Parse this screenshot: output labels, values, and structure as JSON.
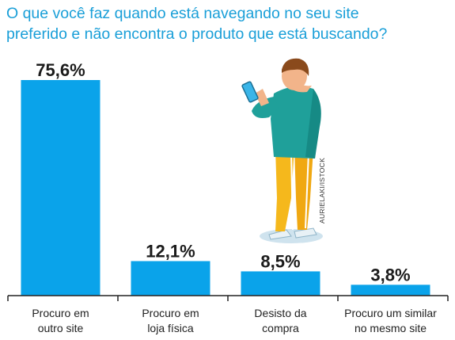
{
  "title_lines": [
    "O que você faz quando está navegando no seu site",
    "preferido e não encontra o produto que está buscando?"
  ],
  "credit": "AURIELAKI/ISTOCK",
  "colors": {
    "bar": "#0aa3ea",
    "title": "#1a9fd8",
    "axis": "#222222"
  },
  "chart_data": {
    "type": "bar",
    "title": "O que você faz quando está navegando no seu site preferido e não encontra o produto que está buscando?",
    "categories": [
      [
        "Procuro em",
        "outro site"
      ],
      [
        "Procuro em",
        "loja física"
      ],
      [
        "Desisto da",
        "compra"
      ],
      [
        "Procuro um similar",
        "no mesmo site"
      ]
    ],
    "values": [
      75.6,
      12.1,
      8.5,
      3.8
    ],
    "value_labels": [
      "75,6%",
      "12,1%",
      "8,5%",
      "3,8%"
    ],
    "xlabel": "",
    "ylabel": "",
    "ylim": [
      0,
      75.6
    ],
    "grid": false,
    "legend": "none"
  }
}
